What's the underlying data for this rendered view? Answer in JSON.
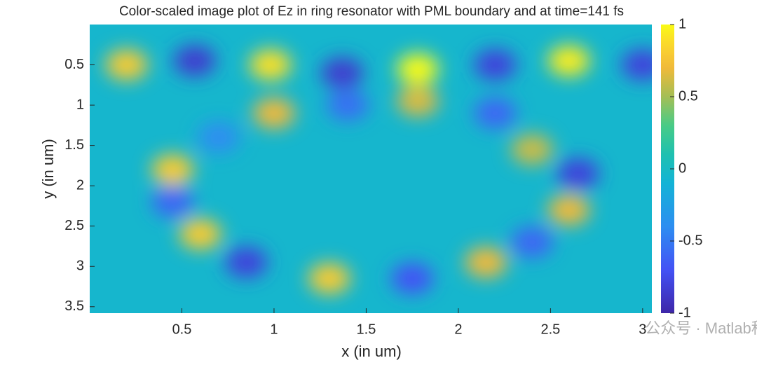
{
  "chart_data": {
    "type": "heatmap",
    "title": "Color-scaled image plot of Ez in ring resonator with PML boundary and at time=141 fs",
    "xlabel": "x (in um)",
    "ylabel": "y (in um)",
    "xlim": [
      0,
      3.05
    ],
    "ylim": [
      0,
      3.58
    ],
    "y_reversed": true,
    "xticks": [
      0.5,
      1,
      1.5,
      2,
      2.5,
      3
    ],
    "yticks": [
      0.5,
      1,
      1.5,
      2,
      2.5,
      3,
      3.5
    ],
    "clim": [
      -1,
      1
    ],
    "cticks": [
      1,
      0.5,
      0,
      -0.5,
      -1
    ],
    "colormap": "parula",
    "background_value": -0.05,
    "blobs": [
      {
        "x": 0.2,
        "y": 0.5,
        "value": 0.8
      },
      {
        "x": 0.57,
        "y": 0.45,
        "value": -0.85
      },
      {
        "x": 0.98,
        "y": 0.5,
        "value": 0.9
      },
      {
        "x": 1.37,
        "y": 0.6,
        "value": -0.85
      },
      {
        "x": 1.78,
        "y": 0.55,
        "value": 1
      },
      {
        "x": 2.2,
        "y": 0.5,
        "value": -0.8
      },
      {
        "x": 2.6,
        "y": 0.45,
        "value": 0.95
      },
      {
        "x": 3.0,
        "y": 0.5,
        "value": -0.8
      },
      {
        "x": 1.78,
        "y": 0.95,
        "value": 0.65
      },
      {
        "x": 1.4,
        "y": 1.0,
        "value": -0.55
      },
      {
        "x": 1.0,
        "y": 1.1,
        "value": 0.7
      },
      {
        "x": 2.2,
        "y": 1.1,
        "value": -0.6
      },
      {
        "x": 0.7,
        "y": 1.4,
        "value": -0.4
      },
      {
        "x": 2.4,
        "y": 1.55,
        "value": 0.6
      },
      {
        "x": 0.45,
        "y": 1.8,
        "value": 0.8
      },
      {
        "x": 2.65,
        "y": 1.85,
        "value": -0.8
      },
      {
        "x": 0.45,
        "y": 2.2,
        "value": -0.6
      },
      {
        "x": 2.6,
        "y": 2.3,
        "value": 0.7
      },
      {
        "x": 0.6,
        "y": 2.6,
        "value": 0.8
      },
      {
        "x": 2.4,
        "y": 2.7,
        "value": -0.6
      },
      {
        "x": 0.85,
        "y": 2.95,
        "value": -0.8
      },
      {
        "x": 1.3,
        "y": 3.15,
        "value": 0.8
      },
      {
        "x": 1.75,
        "y": 3.15,
        "value": -0.7
      },
      {
        "x": 2.15,
        "y": 2.95,
        "value": 0.7
      }
    ],
    "watermark": "公众号 · Matlab科研助手"
  }
}
